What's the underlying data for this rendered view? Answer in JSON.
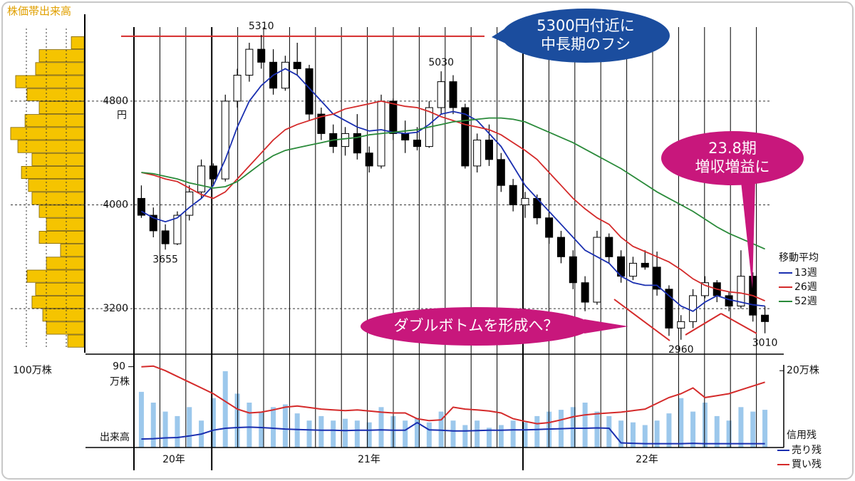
{
  "chart_data": {
    "type": "candlestick",
    "volume_profile": {
      "title": "株価帯出来高",
      "unit": "100万株",
      "color": "#f5c400",
      "xlim": [
        0,
        400
      ],
      "bins": [
        2900,
        3000,
        3100,
        3200,
        3300,
        3400,
        3500,
        3600,
        3700,
        3800,
        3900,
        4000,
        4100,
        4200,
        4300,
        4400,
        4500,
        4600,
        4700,
        4800,
        4900,
        5000,
        5100,
        5200,
        5300
      ],
      "values": [
        82,
        189,
        207,
        261,
        243,
        286,
        189,
        118,
        225,
        189,
        225,
        261,
        279,
        314,
        261,
        332,
        368,
        296,
        225,
        286,
        343,
        243,
        225,
        64
      ]
    },
    "price": {
      "ylim": [
        2860,
        5360
      ],
      "yticks": [
        3200,
        4000,
        4800
      ],
      "unit": "円",
      "grid": true,
      "open": [
        4050,
        3920,
        3800,
        3700,
        3920,
        4100,
        4300,
        4200,
        4800,
        5000,
        5200,
        5100,
        4900,
        5100,
        5050,
        4700,
        4550,
        4450,
        4550,
        4400,
        4300,
        4800,
        4550,
        4500,
        4450,
        4750,
        4950,
        4750,
        4300,
        4500,
        4350,
        4150,
        4000,
        4050,
        3900,
        3750,
        3600,
        3400,
        3250,
        3750,
        3600,
        3450,
        3550,
        3520,
        3350,
        3050,
        3100,
        3300,
        3400,
        3300,
        3220,
        3450,
        3150
      ],
      "high": [
        4150,
        3980,
        3850,
        3950,
        4150,
        4350,
        4320,
        4850,
        5050,
        5250,
        5310,
        5200,
        5150,
        5250,
        5080,
        4750,
        4620,
        4600,
        4700,
        4450,
        4850,
        4820,
        4650,
        4600,
        4800,
        5030,
        5000,
        4780,
        4550,
        4620,
        4400,
        4200,
        4100,
        4080,
        3950,
        3800,
        3650,
        3450,
        3800,
        3780,
        3650,
        3600,
        3650,
        3640,
        3380,
        3150,
        3350,
        3450,
        3420,
        3330,
        3650,
        3480,
        3220
      ],
      "low": [
        3900,
        3750,
        3655,
        3690,
        3880,
        4050,
        4150,
        4180,
        4750,
        4950,
        5050,
        4850,
        4880,
        5000,
        4650,
        4500,
        4400,
        4380,
        4350,
        4250,
        4280,
        4500,
        4400,
        4420,
        4440,
        4700,
        4700,
        4280,
        4250,
        4300,
        4100,
        3950,
        3900,
        3850,
        3700,
        3550,
        3350,
        3180,
        3230,
        3550,
        3400,
        3420,
        3500,
        3300,
        2990,
        2960,
        3050,
        3280,
        3250,
        3180,
        3200,
        3100,
        3010
      ],
      "close": [
        3920,
        3800,
        3700,
        3920,
        4100,
        4300,
        4200,
        4800,
        5000,
        5200,
        5100,
        4900,
        5100,
        5050,
        4700,
        4550,
        4450,
        4550,
        4400,
        4300,
        4800,
        4550,
        4500,
        4450,
        4750,
        4950,
        4750,
        4300,
        4500,
        4350,
        4150,
        4000,
        4050,
        3900,
        3750,
        3600,
        3400,
        3250,
        3750,
        3600,
        3450,
        3550,
        3520,
        3350,
        3050,
        3100,
        3300,
        3400,
        3300,
        3220,
        3450,
        3150,
        3100
      ],
      "price_labels": [
        5310,
        5030,
        3655,
        2960,
        3010
      ],
      "resistance": {
        "value": 5300,
        "color": "#d42a2a"
      }
    },
    "x_labels": [
      "20年",
      "21年",
      "22年"
    ],
    "moving_averages": {
      "title": "移動平均",
      "series": [
        {
          "name": "13週",
          "color": "#1a2fb0",
          "values": [
            3950,
            3900,
            3870,
            3900,
            3980,
            4050,
            4150,
            4350,
            4600,
            4800,
            4920,
            5000,
            5050,
            5000,
            4900,
            4800,
            4700,
            4650,
            4600,
            4570,
            4580,
            4560,
            4550,
            4560,
            4620,
            4700,
            4720,
            4700,
            4650,
            4550,
            4450,
            4300,
            4150,
            4050,
            3950,
            3850,
            3750,
            3650,
            3600,
            3550,
            3450,
            3400,
            3380,
            3380,
            3300,
            3220,
            3180,
            3250,
            3300,
            3270,
            3250,
            3230,
            3220
          ]
        },
        {
          "name": "26週",
          "color": "#d42a2a",
          "values": [
            4250,
            4230,
            4200,
            4180,
            4130,
            4080,
            4050,
            4100,
            4200,
            4300,
            4400,
            4500,
            4580,
            4620,
            4650,
            4680,
            4700,
            4740,
            4760,
            4780,
            4800,
            4780,
            4760,
            4750,
            4720,
            4680,
            4650,
            4620,
            4600,
            4580,
            4540,
            4480,
            4420,
            4350,
            4250,
            4150,
            4050,
            3970,
            3900,
            3850,
            3750,
            3680,
            3640,
            3600,
            3560,
            3500,
            3430,
            3380,
            3350,
            3330,
            3320,
            3300,
            3260
          ]
        },
        {
          "name": "52週",
          "color": "#2a8a3a",
          "values": [
            4250,
            4240,
            4220,
            4200,
            4170,
            4150,
            4130,
            4140,
            4180,
            4250,
            4320,
            4380,
            4420,
            4440,
            4460,
            4480,
            4500,
            4510,
            4520,
            4540,
            4550,
            4560,
            4570,
            4580,
            4600,
            4620,
            4640,
            4650,
            4660,
            4670,
            4670,
            4660,
            4640,
            4600,
            4560,
            4520,
            4480,
            4430,
            4380,
            4330,
            4280,
            4220,
            4160,
            4100,
            4050,
            4000,
            3950,
            3890,
            3830,
            3780,
            3740,
            3700,
            3660
          ]
        }
      ]
    },
    "volume": {
      "label": "出来高",
      "unit": "万株",
      "color": "#9cc8ec",
      "ylim": [
        0,
        100
      ],
      "yticks": [
        90
      ],
      "values": [
        62,
        50,
        40,
        35,
        45,
        30,
        55,
        85,
        60,
        50,
        40,
        45,
        48,
        38,
        30,
        35,
        30,
        32,
        30,
        28,
        45,
        35,
        30,
        33,
        28,
        40,
        30,
        25,
        30,
        22,
        25,
        30,
        28,
        35,
        40,
        42,
        45,
        50,
        40,
        35,
        30,
        28,
        25,
        30,
        38,
        55,
        40,
        50,
        35,
        30,
        45,
        40,
        42
      ]
    },
    "margin": {
      "title": "信用残",
      "y2lim": [
        0,
        23
      ],
      "y2ticks": [
        {
          "value": 20,
          "label": "20万株"
        }
      ],
      "series": [
        {
          "name": "売り残",
          "color": "#1a2fb0",
          "values": [
            2.2,
            2.3,
            2.5,
            2.6,
            3.0,
            3.5,
            4.5,
            5.0,
            5.2,
            5.3,
            5.2,
            5.0,
            4.8,
            4.7,
            4.6,
            4.5,
            4.5,
            4.4,
            4.5,
            4.5,
            4.6,
            4.5,
            4.5,
            6.5,
            4.6,
            4.5,
            4.3,
            4.3,
            4.4,
            4.5,
            4.5,
            4.6,
            4.6,
            4.7,
            4.8,
            4.9,
            5.0,
            5.0,
            5.1,
            5.0,
            1.2,
            1.1,
            1.0,
            1.0,
            1.0,
            1.0,
            1.1,
            1.0,
            1.0,
            1.0,
            1.0,
            1.0,
            1.0
          ]
        },
        {
          "name": "買い残",
          "color": "#d42a2a",
          "values": [
            21,
            21.2,
            20,
            18.5,
            17,
            15.5,
            14,
            12,
            10,
            9,
            9.2,
            9.8,
            10.5,
            10.8,
            10.4,
            10,
            9.8,
            9.6,
            9.8,
            9.5,
            9.2,
            9,
            9,
            7.5,
            7,
            7.2,
            10.5,
            10,
            9.8,
            9.5,
            9,
            7.5,
            6.8,
            6.2,
            6.5,
            7.2,
            8,
            8.5,
            8.8,
            9,
            9.2,
            9.6,
            10,
            11.5,
            13,
            14,
            15.5,
            13,
            13.5,
            14,
            15,
            16,
            17
          ]
        }
      ]
    },
    "callouts": [
      {
        "lines": [
          "5300円付近に",
          "中長期のフシ"
        ],
        "color": "#1b4d9e"
      },
      {
        "lines": [
          "23.8期",
          "増収増益に"
        ],
        "color": "#c8177c"
      },
      {
        "lines": [
          "ダブルボトムを形成へ？"
        ],
        "color": "#c8177c"
      }
    ]
  }
}
